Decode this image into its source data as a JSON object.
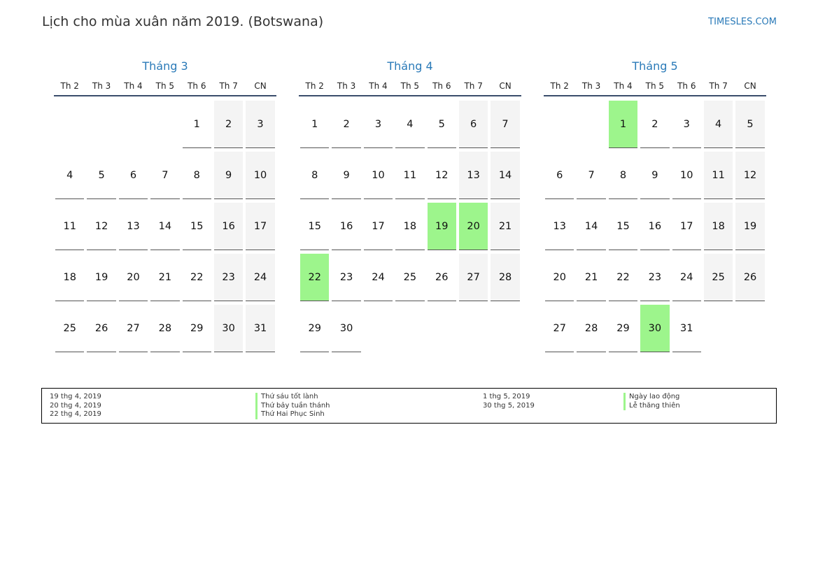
{
  "title": "Lịch cho mùa xuân năm 2019. (Botswana)",
  "site": "TIMESLES.COM",
  "weekday_labels": [
    "Th 2",
    "Th 3",
    "Th 4",
    "Th 5",
    "Th 6",
    "Th 7",
    "CN"
  ],
  "colors": {
    "accent": "#2a7ab8",
    "holiday": "#9df58c",
    "weekend": "#f4f4f4"
  },
  "months": [
    {
      "name": "Tháng 3",
      "first_weekday": 4,
      "days": 31,
      "holidays": []
    },
    {
      "name": "Tháng 4",
      "first_weekday": 0,
      "days": 30,
      "holidays": [
        19,
        20,
        22
      ]
    },
    {
      "name": "Tháng 5",
      "first_weekday": 2,
      "days": 31,
      "holidays": [
        1,
        30
      ]
    }
  ],
  "legend": {
    "left": [
      {
        "date": "19 thg 4, 2019",
        "name": "Thứ sáu tốt lành"
      },
      {
        "date": "20 thg 4, 2019",
        "name": "Thứ bảy tuần thánh"
      },
      {
        "date": "22 thg 4, 2019",
        "name": "Thứ Hai Phục Sinh"
      }
    ],
    "right": [
      {
        "date": "1 thg 5, 2019",
        "name": "Ngày lao động"
      },
      {
        "date": "30 thg 5, 2019",
        "name": "Lễ thăng thiên"
      }
    ]
  }
}
